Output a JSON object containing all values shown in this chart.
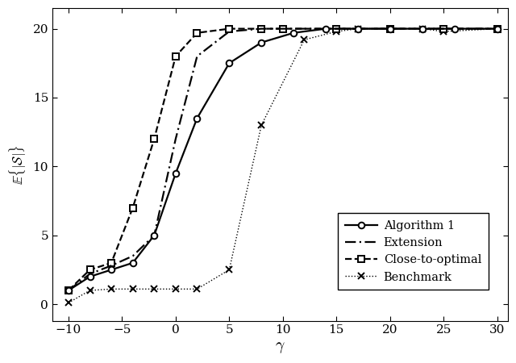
{
  "algorithm1_x": [
    -10,
    -8,
    -6,
    -4,
    -2,
    0,
    2,
    5,
    8,
    11,
    14,
    17,
    20,
    23,
    26,
    30
  ],
  "algorithm1_y": [
    1.0,
    2.0,
    2.5,
    3.0,
    5.0,
    9.5,
    13.5,
    17.5,
    19.0,
    19.7,
    20.0,
    20.0,
    20.0,
    20.0,
    20.0,
    20.0
  ],
  "extension_x": [
    -10,
    -8,
    -6,
    -4,
    -2,
    0,
    2,
    5,
    8,
    10,
    14,
    17,
    20,
    25,
    30
  ],
  "extension_y": [
    1.0,
    2.2,
    2.8,
    3.5,
    5.0,
    12.0,
    18.0,
    19.8,
    20.0,
    20.0,
    20.0,
    20.0,
    20.0,
    20.0,
    20.0
  ],
  "closetooptimal_x": [
    -10,
    -8,
    -6,
    -4,
    -2,
    0,
    2,
    5,
    8,
    10,
    15,
    20,
    25,
    30
  ],
  "closetooptimal_y": [
    1.0,
    2.5,
    3.0,
    7.0,
    12.0,
    18.0,
    19.7,
    20.0,
    20.0,
    20.0,
    20.0,
    20.0,
    20.0,
    20.0
  ],
  "benchmark_x": [
    -10,
    -8,
    -6,
    -4,
    -2,
    0,
    2,
    5,
    8,
    12,
    15,
    17,
    20,
    23,
    25,
    30
  ],
  "benchmark_y": [
    0.1,
    1.0,
    1.1,
    1.1,
    1.1,
    1.1,
    1.1,
    2.5,
    13.0,
    19.2,
    19.8,
    20.0,
    20.0,
    20.0,
    19.8,
    20.0
  ],
  "xlabel": "$\\gamma$",
  "ylabel": "$\\mathbb{E}\\{|\\mathcal{S}|\\}$",
  "xlim": [
    -11.5,
    31
  ],
  "ylim": [
    -1.2,
    21.5
  ],
  "xticks": [
    -10,
    -5,
    0,
    5,
    10,
    15,
    20,
    25,
    30
  ],
  "yticks": [
    0,
    5,
    10,
    15,
    20
  ],
  "legend_labels": [
    "Algorithm 1",
    "Extension",
    "Close-to-optimal",
    "Benchmark"
  ],
  "line_color": "#000000",
  "background_color": "#ffffff"
}
